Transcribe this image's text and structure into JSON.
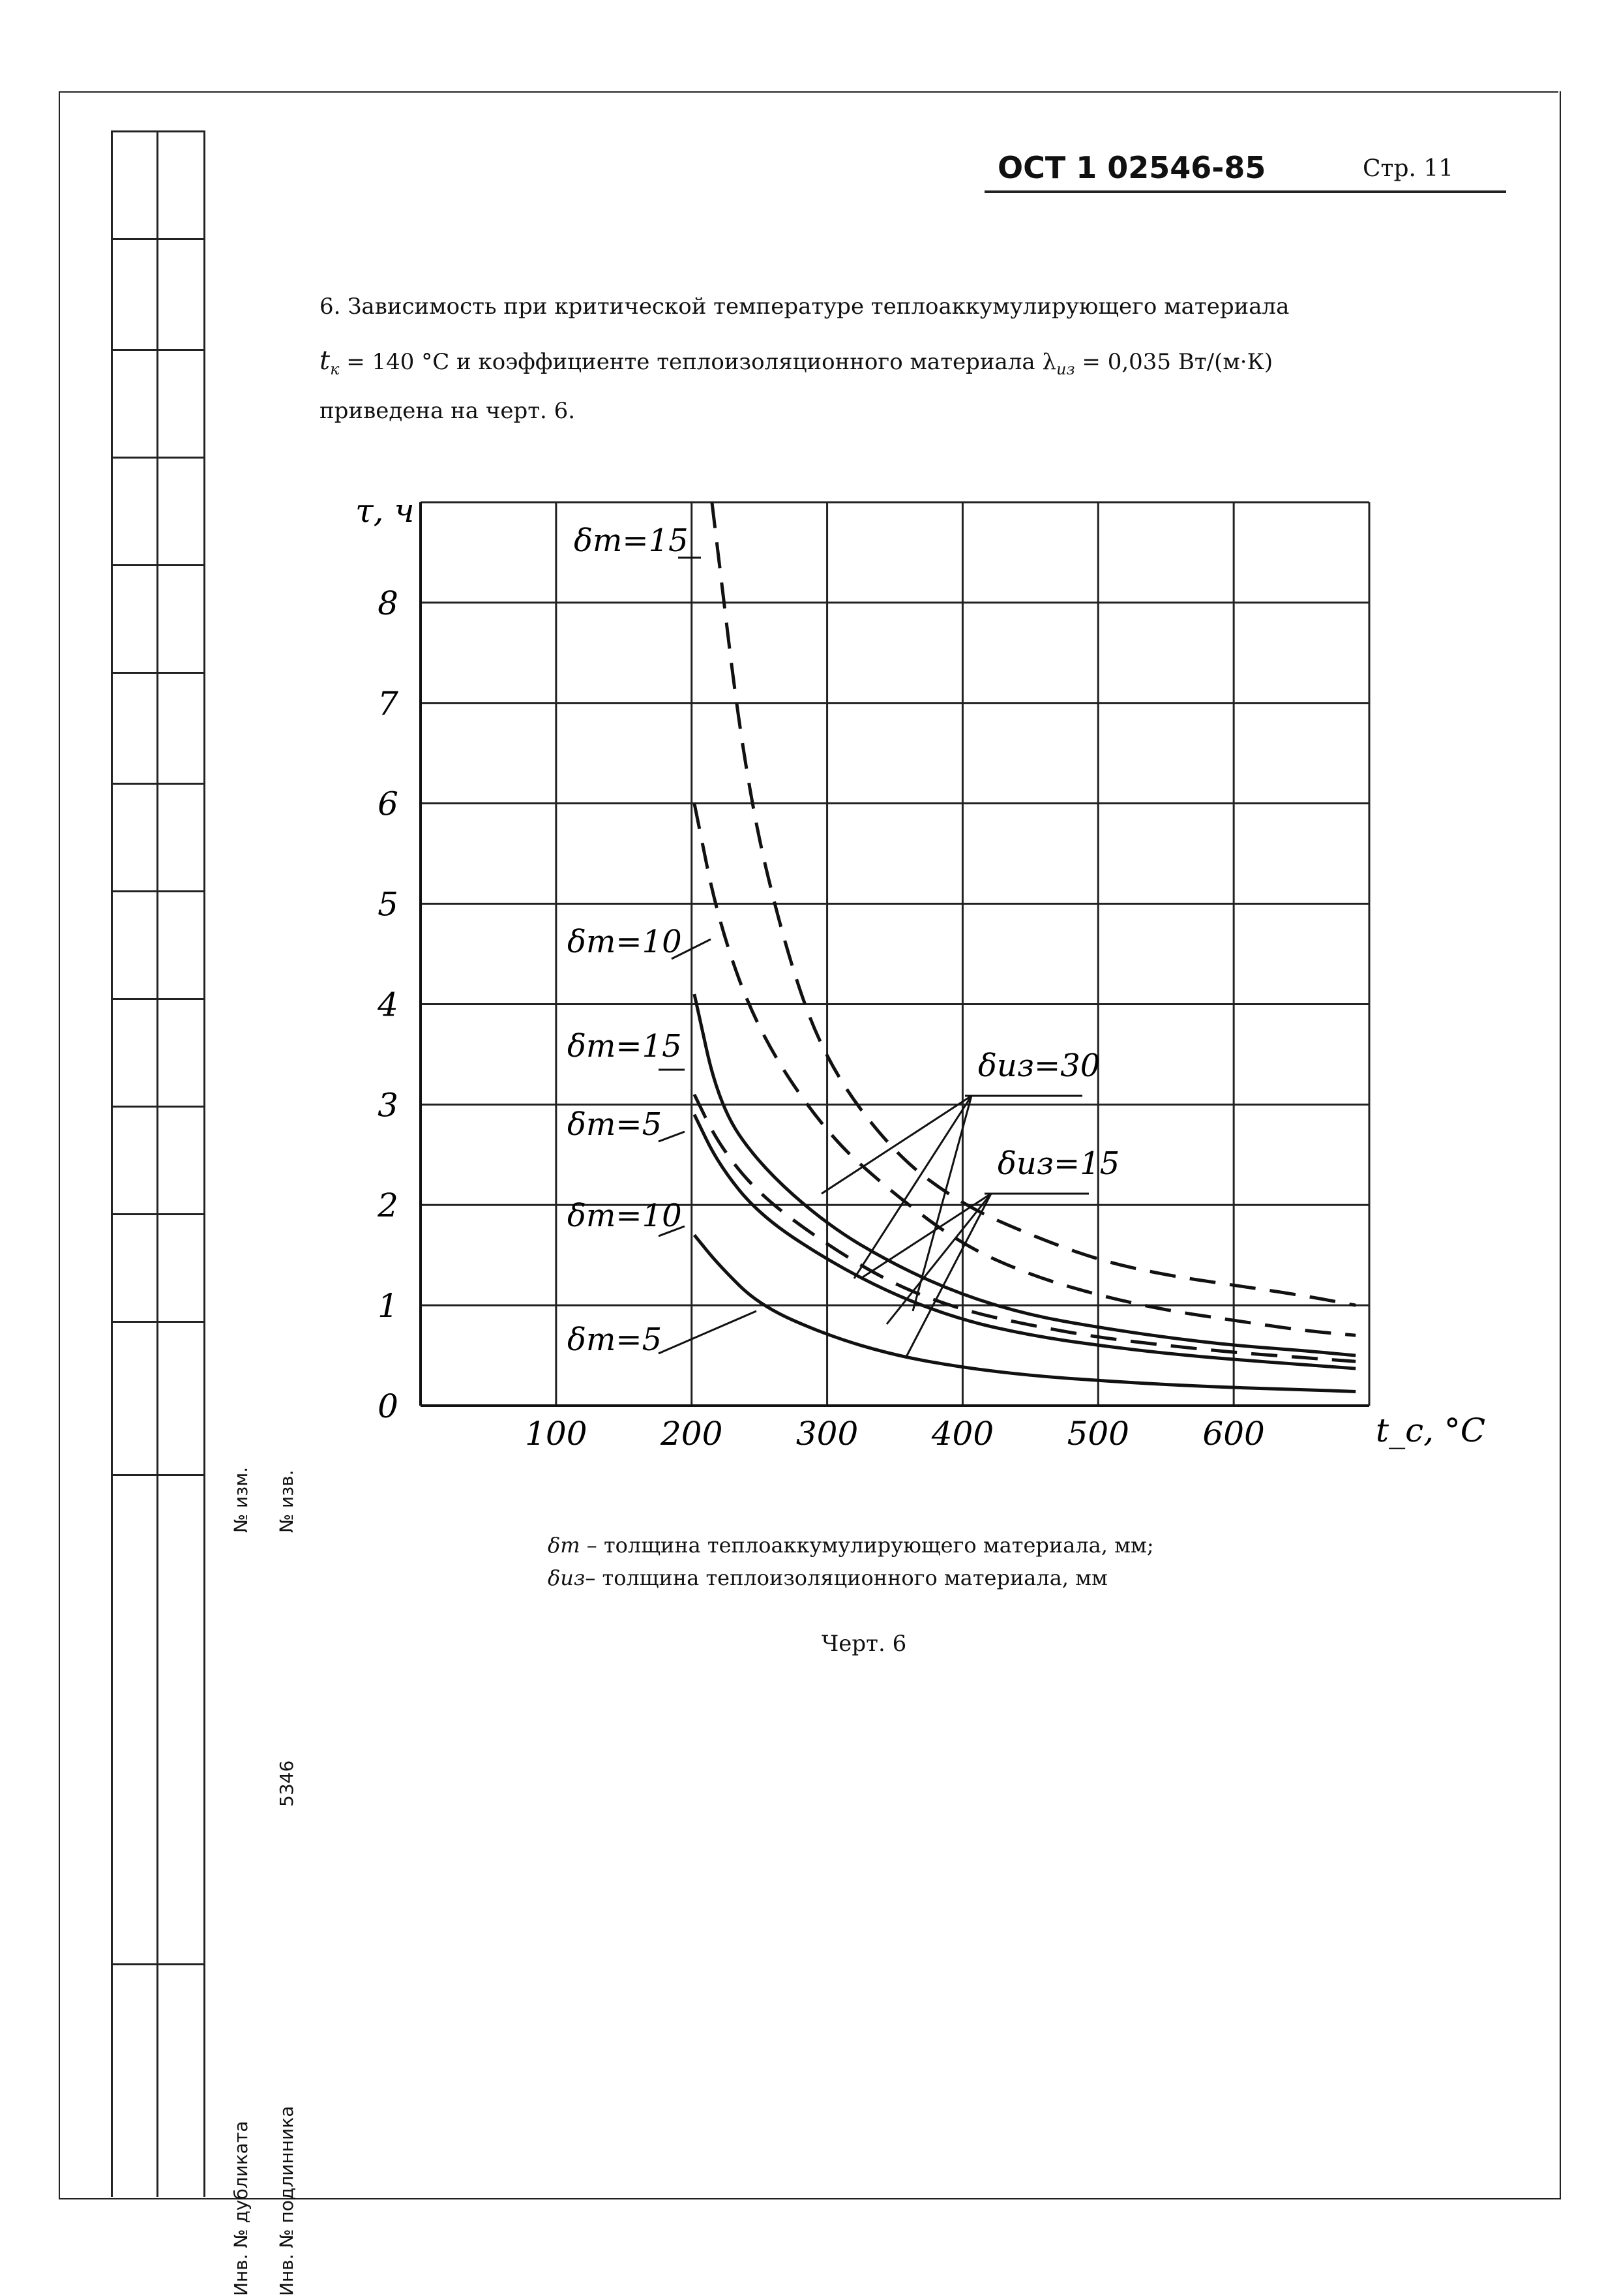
{
  "header": {
    "doc_code": "ОСТ 1 02546-85",
    "page": "Стр. 11"
  },
  "paragraph": {
    "line1": "6. Зависимость при критической температуре теплоаккумулирующего материала",
    "line2_sym": "t",
    "line2_sub": "к",
    "line2_rest": " = 140 °С и коэффициенте теплоизоляционного материала  λ",
    "line2_sub2": "из",
    "line2_end": " = 0,035 Вт/(м·К)",
    "line3": "приведена на черт. 6."
  },
  "stamp": {
    "izm": "№ изм.",
    "izv": "№ изв.",
    "number": "5346",
    "dublikat": "Инв. № дубликата",
    "podlinnik": "Инв. № подлинника"
  },
  "chart_data": {
    "type": "line",
    "ylabel": "τ, ч",
    "xlabel": "t_c, °C",
    "xlim": [
      0,
      700
    ],
    "ylim": [
      0,
      9
    ],
    "x_ticks": [
      "100",
      "200",
      "300",
      "400",
      "500",
      "600"
    ],
    "y_ticks": [
      "0",
      "1",
      "2",
      "3",
      "4",
      "5",
      "6",
      "7",
      "8"
    ],
    "grid": true,
    "annotations": [
      "δт=15",
      "δт=10",
      "δт=15",
      "δт=5",
      "δт=10",
      "δт=5",
      "δиз=30",
      "δиз=15"
    ],
    "series": [
      {
        "name": "δиз=30, δт=15",
        "style": "dashed",
        "x": [
          215,
          240,
          270,
          300,
          350,
          400,
          450,
          500,
          550,
          600,
          650,
          690
        ],
        "y": [
          9,
          6.2,
          4.5,
          3.4,
          2.5,
          2.0,
          1.7,
          1.45,
          1.3,
          1.2,
          1.1,
          1.0
        ]
      },
      {
        "name": "δиз=30, δт=10",
        "style": "dashed",
        "x": [
          202,
          220,
          250,
          300,
          350,
          400,
          450,
          500,
          550,
          600,
          650,
          690
        ],
        "y": [
          6.0,
          4.8,
          3.7,
          2.7,
          2.1,
          1.6,
          1.3,
          1.1,
          0.95,
          0.85,
          0.75,
          0.7
        ]
      },
      {
        "name": "δиз=15, δт=15",
        "style": "solid",
        "x": [
          202,
          220,
          250,
          300,
          350,
          400,
          450,
          500,
          550,
          600,
          650,
          690
        ],
        "y": [
          4.1,
          3.0,
          2.4,
          1.8,
          1.4,
          1.1,
          0.9,
          0.78,
          0.68,
          0.6,
          0.55,
          0.5
        ]
      },
      {
        "name": "δиз=30, δт=5",
        "style": "dashed",
        "x": [
          202,
          220,
          250,
          300,
          350,
          400,
          450,
          500,
          550,
          600,
          650,
          690
        ],
        "y": [
          3.1,
          2.6,
          2.1,
          1.6,
          1.2,
          0.95,
          0.8,
          0.68,
          0.6,
          0.53,
          0.48,
          0.44
        ]
      },
      {
        "name": "δиз=15, δт=10",
        "style": "solid",
        "x": [
          202,
          220,
          250,
          300,
          350,
          400,
          450,
          500,
          550,
          600,
          650,
          690
        ],
        "y": [
          2.9,
          2.4,
          1.9,
          1.45,
          1.1,
          0.85,
          0.7,
          0.6,
          0.52,
          0.46,
          0.41,
          0.37
        ]
      },
      {
        "name": "δиз=15, δт=5",
        "style": "solid",
        "x": [
          202,
          220,
          250,
          300,
          350,
          400,
          450,
          500,
          550,
          600,
          650,
          690
        ],
        "y": [
          1.7,
          1.4,
          1.0,
          0.7,
          0.5,
          0.38,
          0.3,
          0.25,
          0.21,
          0.18,
          0.16,
          0.14
        ]
      }
    ]
  },
  "legend": {
    "line1_sym": "δт",
    "line1_text": " – толщина теплоаккумулирующего материала, мм;",
    "line2_sym": "δиз",
    "line2_text": "– толщина теплоизоляционного материала, мм"
  },
  "caption": "Черт. 6"
}
